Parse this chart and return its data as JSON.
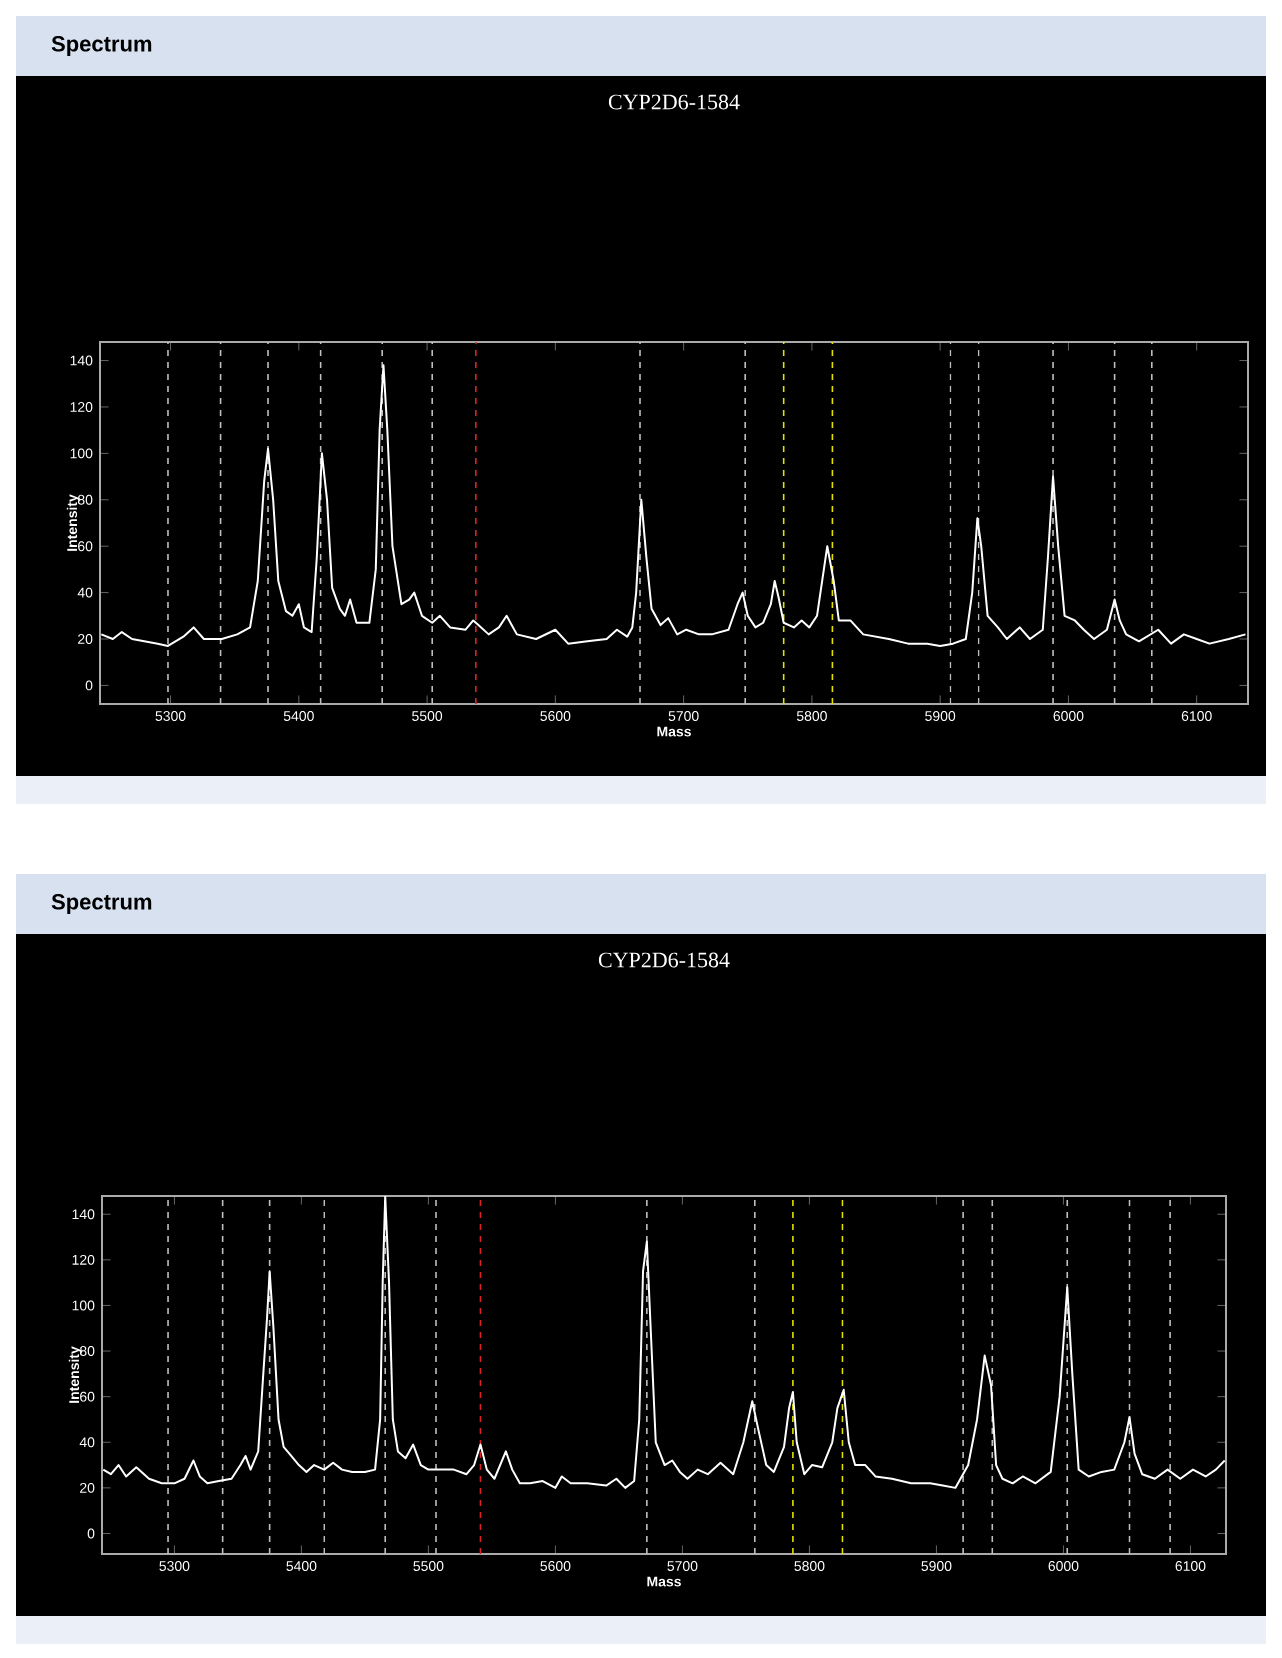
{
  "chart_data": [
    {
      "type": "line",
      "title": "CYP2D6-1584",
      "annotations": [
        "Spectrum"
      ],
      "xlabel": "Mass",
      "ylabel": "Intensity",
      "xlim": [
        5245,
        6140
      ],
      "ylim": [
        -8,
        148
      ],
      "xticks": [
        5300,
        5400,
        5500,
        5600,
        5700,
        5800,
        5900,
        6000,
        6100
      ],
      "yticks": [
        0,
        20,
        40,
        60,
        80,
        100,
        120,
        140
      ],
      "grid": false,
      "marker": "none",
      "line_style": "solid",
      "ref_lines": [
        {
          "axis": "x",
          "value": 5298,
          "color": "#bfbfbf",
          "line_style": "dashed"
        },
        {
          "axis": "x",
          "value": 5339,
          "color": "#bfbfbf",
          "line_style": "dashed"
        },
        {
          "axis": "x",
          "value": 5376,
          "color": "#bfbfbf",
          "line_style": "dashed"
        },
        {
          "axis": "x",
          "value": 5417,
          "color": "#bfbfbf",
          "line_style": "dashed"
        },
        {
          "axis": "x",
          "value": 5465,
          "color": "#bfbfbf",
          "line_style": "dashed"
        },
        {
          "axis": "x",
          "value": 5504,
          "color": "#bfbfbf",
          "line_style": "dashed"
        },
        {
          "axis": "x",
          "value": 5538,
          "color": "#e0201c",
          "line_style": "dashed"
        },
        {
          "axis": "x",
          "value": 5666,
          "color": "#bfbfbf",
          "line_style": "dashed"
        },
        {
          "axis": "x",
          "value": 5748,
          "color": "#bfbfbf",
          "line_style": "dashed"
        },
        {
          "axis": "x",
          "value": 5778,
          "color": "#e6e000",
          "line_style": "dashed"
        },
        {
          "axis": "x",
          "value": 5816,
          "color": "#e6e000",
          "line_style": "dashed"
        },
        {
          "axis": "x",
          "value": 5908,
          "color": "#bfbfbf",
          "line_style": "dashed"
        },
        {
          "axis": "x",
          "value": 5930,
          "color": "#bfbfbf",
          "line_style": "dashed"
        },
        {
          "axis": "x",
          "value": 5988,
          "color": "#bfbfbf",
          "line_style": "dashed"
        },
        {
          "axis": "x",
          "value": 6036,
          "color": "#bfbfbf",
          "line_style": "dashed"
        },
        {
          "axis": "x",
          "value": 6065,
          "color": "#bfbfbf",
          "line_style": "dashed"
        }
      ],
      "series": [
        {
          "color": "#ffffff",
          "x": [
            5246,
            5255,
            5262,
            5270,
            5290,
            5298,
            5310,
            5318,
            5326,
            5340,
            5352,
            5362,
            5368,
            5373,
            5376,
            5380,
            5384,
            5390,
            5395,
            5400,
            5404,
            5410,
            5414,
            5418,
            5422,
            5426,
            5432,
            5436,
            5440,
            5445,
            5455,
            5460,
            5463,
            5466,
            5469,
            5473,
            5480,
            5486,
            5490,
            5496,
            5504,
            5510,
            5518,
            5530,
            5536,
            5540,
            5548,
            5556,
            5562,
            5570,
            5585,
            5600,
            5610,
            5625,
            5640,
            5648,
            5656,
            5660,
            5663,
            5667,
            5671,
            5675,
            5682,
            5688,
            5695,
            5702,
            5712,
            5722,
            5735,
            5742,
            5746,
            5750,
            5756,
            5762,
            5768,
            5771,
            5774,
            5778,
            5786,
            5792,
            5798,
            5804,
            5808,
            5812,
            5817,
            5821,
            5830,
            5840,
            5860,
            5875,
            5890,
            5900,
            5910,
            5920,
            5925,
            5929,
            5932,
            5937,
            5945,
            5952,
            5962,
            5970,
            5980,
            5984,
            5988,
            5992,
            5997,
            6005,
            6012,
            6020,
            6030,
            6036,
            6040,
            6045,
            6055,
            6070,
            6080,
            6090,
            6100,
            6110,
            6125,
            6138
          ],
          "values": [
            22,
            20,
            23,
            20,
            18,
            17,
            21,
            25,
            20,
            20,
            22,
            25,
            45,
            88,
            102,
            80,
            45,
            32,
            30,
            35,
            25,
            23,
            55,
            100,
            80,
            42,
            33,
            30,
            37,
            27,
            27,
            50,
            110,
            138,
            110,
            60,
            35,
            37,
            40,
            30,
            27,
            30,
            25,
            24,
            28,
            26,
            22,
            25,
            30,
            22,
            20,
            24,
            18,
            19,
            20,
            24,
            21,
            25,
            40,
            80,
            55,
            33,
            26,
            29,
            22,
            24,
            22,
            22,
            24,
            35,
            40,
            30,
            25,
            27,
            35,
            45,
            38,
            27,
            25,
            28,
            25,
            30,
            45,
            60,
            45,
            28,
            28,
            22,
            20,
            18,
            18,
            17,
            18,
            20,
            40,
            72,
            60,
            30,
            25,
            20,
            25,
            20,
            24,
            55,
            90,
            60,
            30,
            28,
            24,
            20,
            24,
            37,
            28,
            22,
            19,
            24,
            18,
            22,
            20,
            18,
            20,
            22
          ]
        }
      ]
    },
    {
      "type": "line",
      "title": "CYP2D6-1584",
      "annotations": [
        "Spectrum"
      ],
      "xlabel": "Mass",
      "ylabel": "Intensity",
      "xlim": [
        5243,
        6128
      ],
      "ylim": [
        -9,
        148
      ],
      "xticks": [
        5300,
        5400,
        5500,
        5600,
        5700,
        5800,
        5900,
        6000,
        6100
      ],
      "yticks": [
        0,
        20,
        40,
        60,
        80,
        100,
        120,
        140
      ],
      "grid": false,
      "marker": "none",
      "line_style": "solid",
      "ref_lines": [
        {
          "axis": "x",
          "value": 5295,
          "color": "#bfbfbf",
          "line_style": "dashed"
        },
        {
          "axis": "x",
          "value": 5338,
          "color": "#bfbfbf",
          "line_style": "dashed"
        },
        {
          "axis": "x",
          "value": 5375,
          "color": "#bfbfbf",
          "line_style": "dashed"
        },
        {
          "axis": "x",
          "value": 5418,
          "color": "#bfbfbf",
          "line_style": "dashed"
        },
        {
          "axis": "x",
          "value": 5466,
          "color": "#bfbfbf",
          "line_style": "dashed"
        },
        {
          "axis": "x",
          "value": 5506,
          "color": "#bfbfbf",
          "line_style": "dashed"
        },
        {
          "axis": "x",
          "value": 5541,
          "color": "#e0201c",
          "line_style": "dashed"
        },
        {
          "axis": "x",
          "value": 5672,
          "color": "#bfbfbf",
          "line_style": "dashed"
        },
        {
          "axis": "x",
          "value": 5757,
          "color": "#bfbfbf",
          "line_style": "dashed"
        },
        {
          "axis": "x",
          "value": 5787,
          "color": "#e6e000",
          "line_style": "dashed"
        },
        {
          "axis": "x",
          "value": 5826,
          "color": "#e6e000",
          "line_style": "dashed"
        },
        {
          "axis": "x",
          "value": 5921,
          "color": "#bfbfbf",
          "line_style": "dashed"
        },
        {
          "axis": "x",
          "value": 5944,
          "color": "#bfbfbf",
          "line_style": "dashed"
        },
        {
          "axis": "x",
          "value": 6003,
          "color": "#bfbfbf",
          "line_style": "dashed"
        },
        {
          "axis": "x",
          "value": 6052,
          "color": "#bfbfbf",
          "line_style": "dashed"
        },
        {
          "axis": "x",
          "value": 6084,
          "color": "#bfbfbf",
          "line_style": "dashed"
        }
      ],
      "series": [
        {
          "color": "#ffffff",
          "x": [
            5244,
            5250,
            5256,
            5262,
            5270,
            5280,
            5290,
            5300,
            5308,
            5315,
            5320,
            5326,
            5335,
            5345,
            5352,
            5356,
            5360,
            5366,
            5370,
            5373,
            5375,
            5378,
            5382,
            5386,
            5392,
            5398,
            5404,
            5410,
            5418,
            5425,
            5432,
            5440,
            5450,
            5458,
            5462,
            5464,
            5466,
            5469,
            5472,
            5476,
            5482,
            5488,
            5494,
            5500,
            5510,
            5520,
            5530,
            5536,
            5541,
            5546,
            5552,
            5561,
            5566,
            5572,
            5580,
            5590,
            5600,
            5605,
            5612,
            5625,
            5640,
            5648,
            5655,
            5662,
            5666,
            5669,
            5672,
            5675,
            5679,
            5686,
            5692,
            5698,
            5704,
            5712,
            5720,
            5730,
            5740,
            5748,
            5755,
            5760,
            5766,
            5772,
            5780,
            5784,
            5787,
            5790,
            5796,
            5802,
            5810,
            5818,
            5822,
            5827,
            5831,
            5836,
            5844,
            5852,
            5865,
            5880,
            5895,
            5905,
            5915,
            5925,
            5932,
            5938,
            5943,
            5947,
            5952,
            5960,
            5968,
            5978,
            5990,
            5997,
            6003,
            6007,
            6012,
            6020,
            6030,
            6040,
            6048,
            6052,
            6056,
            6062,
            6072,
            6082,
            6092,
            6102,
            6112,
            6120,
            6127
          ],
          "values": [
            28,
            26,
            30,
            25,
            29,
            24,
            22,
            22,
            24,
            32,
            25,
            22,
            23,
            24,
            30,
            34,
            28,
            36,
            70,
            95,
            115,
            90,
            50,
            38,
            34,
            30,
            27,
            30,
            28,
            31,
            28,
            27,
            27,
            28,
            50,
            110,
            148,
            110,
            50,
            36,
            33,
            39,
            30,
            28,
            28,
            28,
            26,
            30,
            39,
            28,
            24,
            36,
            28,
            22,
            22,
            23,
            20,
            25,
            22,
            22,
            21,
            24,
            20,
            23,
            50,
            115,
            128,
            90,
            40,
            30,
            32,
            27,
            24,
            28,
            26,
            31,
            26,
            40,
            58,
            45,
            30,
            27,
            38,
            55,
            62,
            40,
            26,
            30,
            29,
            40,
            55,
            63,
            40,
            30,
            30,
            25,
            24,
            22,
            22,
            21,
            20,
            30,
            50,
            78,
            65,
            30,
            24,
            22,
            25,
            22,
            27,
            60,
            108,
            70,
            28,
            25,
            27,
            28,
            40,
            51,
            35,
            26,
            24,
            28,
            24,
            28,
            25,
            28,
            32
          ]
        }
      ]
    }
  ]
}
